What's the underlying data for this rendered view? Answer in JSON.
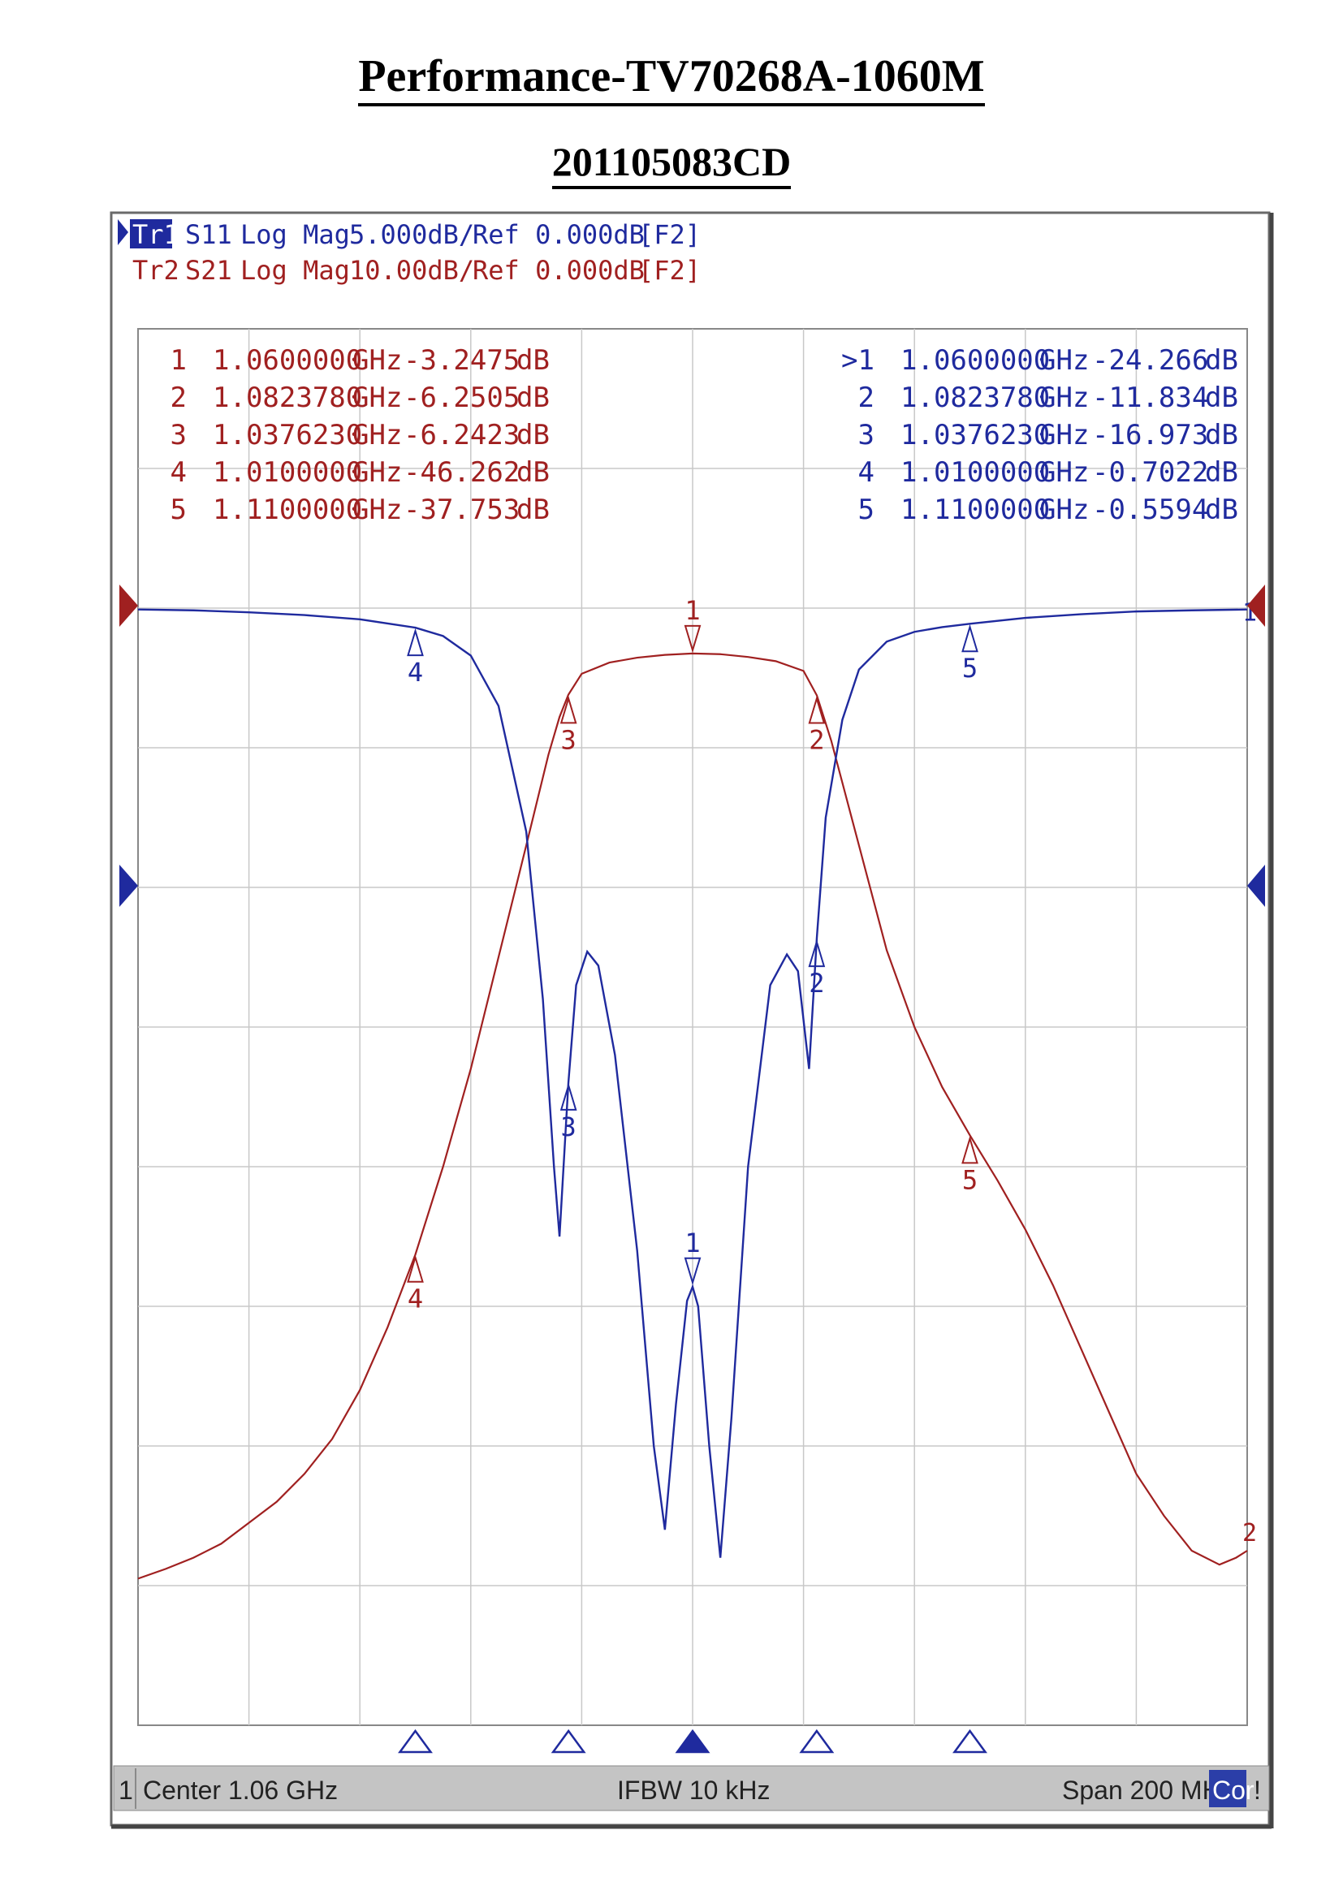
{
  "page": {
    "title": "Performance-TV70268A-1060M",
    "subtitle": "201105083CD"
  },
  "colors": {
    "s11": "#1f2a9e",
    "s21": "#a02020",
    "grid": "#c8c8c8",
    "status_bar": "#c4c4c4"
  },
  "chart_data": {
    "type": "line",
    "traces": [
      {
        "id": "Tr1",
        "label": "Tr1",
        "param": "S11",
        "format": "Log Mag",
        "scale": "5.000dB/",
        "ref": "Ref 0.000dB",
        "tag": "[F2]",
        "active": true
      },
      {
        "id": "Tr2",
        "label": "Tr2",
        "param": "S21",
        "format": "Log Mag",
        "scale": "10.00dB/",
        "ref": "Ref 0.000dB",
        "tag": "[F2]",
        "active": false
      }
    ],
    "x_unit": "GHz",
    "xlim": [
      0.96,
      1.16
    ],
    "s21_ylim": [
      -80,
      20
    ],
    "s11_ylim": [
      -40,
      10
    ],
    "s21_markers": [
      {
        "n": "1",
        "freq": "1.0600000",
        "unit": "GHz",
        "value": "-3.2475",
        "vunit": "dB"
      },
      {
        "n": "2",
        "freq": "1.0823780",
        "unit": "GHz",
        "value": "-6.2505",
        "vunit": "dB"
      },
      {
        "n": "3",
        "freq": "1.0376230",
        "unit": "GHz",
        "value": "-6.2423",
        "vunit": "dB"
      },
      {
        "n": "4",
        "freq": "1.0100000",
        "unit": "GHz",
        "value": "-46.262",
        "vunit": "dB"
      },
      {
        "n": "5",
        "freq": "1.1100000",
        "unit": "GHz",
        "value": "-37.753",
        "vunit": "dB"
      }
    ],
    "s11_markers": [
      {
        "n": ">1",
        "freq": "1.0600000",
        "unit": "GHz",
        "value": "-24.266",
        "vunit": "dB"
      },
      {
        "n": "2",
        "freq": "1.0823780",
        "unit": "GHz",
        "value": "-11.834",
        "vunit": "dB"
      },
      {
        "n": "3",
        "freq": "1.0376230",
        "unit": "GHz",
        "value": "-16.973",
        "vunit": "dB"
      },
      {
        "n": "4",
        "freq": "1.0100000",
        "unit": "GHz",
        "value": "-0.7022",
        "vunit": "dB"
      },
      {
        "n": "5",
        "freq": "1.1100000",
        "unit": "GHz",
        "value": "-0.5594",
        "vunit": "dB"
      }
    ],
    "s21_series": [
      [
        0.96,
        -69.5
      ],
      [
        0.965,
        -68.8
      ],
      [
        0.97,
        -68.0
      ],
      [
        0.975,
        -67.0
      ],
      [
        0.98,
        -65.5
      ],
      [
        0.985,
        -64.0
      ],
      [
        0.99,
        -62.0
      ],
      [
        0.995,
        -59.5
      ],
      [
        1.0,
        -56.0
      ],
      [
        1.005,
        -51.5
      ],
      [
        1.01,
        -46.3
      ],
      [
        1.015,
        -40.0
      ],
      [
        1.02,
        -33.0
      ],
      [
        1.025,
        -25.0
      ],
      [
        1.03,
        -17.0
      ],
      [
        1.034,
        -10.5
      ],
      [
        1.036,
        -7.8
      ],
      [
        1.0376,
        -6.2
      ],
      [
        1.04,
        -4.7
      ],
      [
        1.045,
        -3.9
      ],
      [
        1.05,
        -3.55
      ],
      [
        1.055,
        -3.35
      ],
      [
        1.06,
        -3.25
      ],
      [
        1.065,
        -3.3
      ],
      [
        1.07,
        -3.5
      ],
      [
        1.075,
        -3.8
      ],
      [
        1.08,
        -4.5
      ],
      [
        1.0824,
        -6.25
      ],
      [
        1.085,
        -9.5
      ],
      [
        1.09,
        -17.0
      ],
      [
        1.095,
        -24.5
      ],
      [
        1.1,
        -30.0
      ],
      [
        1.105,
        -34.3
      ],
      [
        1.11,
        -37.75
      ],
      [
        1.115,
        -41.0
      ],
      [
        1.12,
        -44.5
      ],
      [
        1.125,
        -48.5
      ],
      [
        1.13,
        -53.0
      ],
      [
        1.135,
        -57.5
      ],
      [
        1.14,
        -62.0
      ],
      [
        1.145,
        -65.0
      ],
      [
        1.15,
        -67.5
      ],
      [
        1.155,
        -68.5
      ],
      [
        1.158,
        -68.0
      ],
      [
        1.16,
        -67.5
      ]
    ],
    "s11_series": [
      [
        0.96,
        -0.05
      ],
      [
        0.97,
        -0.08
      ],
      [
        0.98,
        -0.15
      ],
      [
        0.99,
        -0.25
      ],
      [
        1.0,
        -0.4
      ],
      [
        1.005,
        -0.55
      ],
      [
        1.01,
        -0.7
      ],
      [
        1.015,
        -1.0
      ],
      [
        1.02,
        -1.7
      ],
      [
        1.025,
        -3.5
      ],
      [
        1.03,
        -8.0
      ],
      [
        1.033,
        -14.0
      ],
      [
        1.035,
        -20.0
      ],
      [
        1.036,
        -22.5
      ],
      [
        1.0376,
        -17.0
      ],
      [
        1.039,
        -13.5
      ],
      [
        1.041,
        -12.3
      ],
      [
        1.043,
        -12.8
      ],
      [
        1.046,
        -16.0
      ],
      [
        1.05,
        -23.0
      ],
      [
        1.053,
        -30.0
      ],
      [
        1.055,
        -33.0
      ],
      [
        1.057,
        -28.5
      ],
      [
        1.059,
        -24.8
      ],
      [
        1.06,
        -24.3
      ],
      [
        1.061,
        -25.0
      ],
      [
        1.063,
        -30.0
      ],
      [
        1.065,
        -34.0
      ],
      [
        1.067,
        -29.0
      ],
      [
        1.07,
        -20.0
      ],
      [
        1.074,
        -13.5
      ],
      [
        1.077,
        -12.4
      ],
      [
        1.079,
        -13.0
      ],
      [
        1.081,
        -16.5
      ],
      [
        1.0824,
        -11.8
      ],
      [
        1.084,
        -7.5
      ],
      [
        1.087,
        -4.0
      ],
      [
        1.09,
        -2.2
      ],
      [
        1.095,
        -1.2
      ],
      [
        1.1,
        -0.85
      ],
      [
        1.105,
        -0.68
      ],
      [
        1.11,
        -0.56
      ],
      [
        1.12,
        -0.35
      ],
      [
        1.13,
        -0.22
      ],
      [
        1.14,
        -0.12
      ],
      [
        1.15,
        -0.08
      ],
      [
        1.16,
        -0.05
      ]
    ],
    "status": {
      "channel": "1",
      "center": "Center 1.06 GHz",
      "ifbw": "IFBW 10 kHz",
      "span": "Span 200 MHz",
      "cor": "Cor",
      "excl": "!"
    },
    "s11_end_marker": "1",
    "s21_end_marker": "2",
    "grid": true
  }
}
